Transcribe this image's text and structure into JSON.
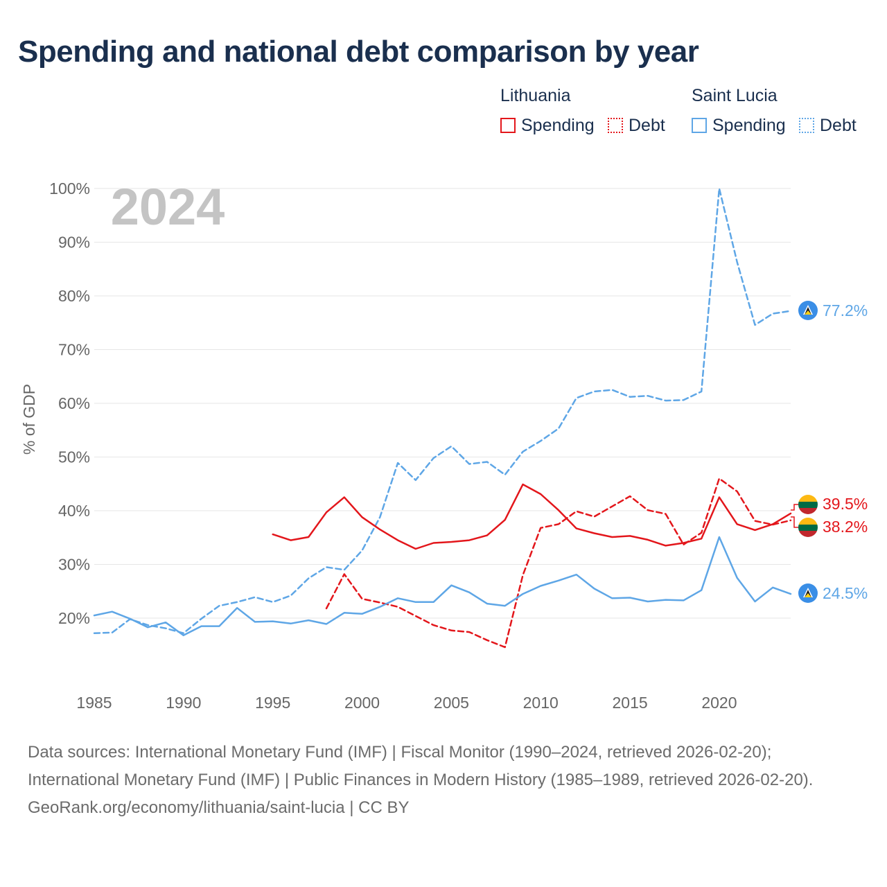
{
  "title": "Spending and national debt comparison by year",
  "legend": {
    "lithuania": {
      "name": "Lithuania",
      "spending": "Spending",
      "debt": "Debt"
    },
    "saint_lucia": {
      "name": "Saint Lucia",
      "spending": "Spending",
      "debt": "Debt"
    }
  },
  "colors": {
    "lithuania": "#e3161b",
    "saint_lucia": "#5ea6e6",
    "year_watermark": "#c4c4c4",
    "grid": "#e6e6e6"
  },
  "chart_data": {
    "type": "line",
    "year_label": "2024",
    "ylabel": "% of GDP",
    "xlim": [
      1985,
      2024
    ],
    "ylim": [
      8,
      100
    ],
    "x_ticks": [
      1985,
      1990,
      1995,
      2000,
      2005,
      2010,
      2015,
      2020
    ],
    "x_tick_labels": [
      "1985",
      "1990",
      "1995",
      "2000",
      "2005",
      "2010",
      "2015",
      "2020"
    ],
    "y_ticks": [
      20,
      30,
      40,
      50,
      60,
      70,
      80,
      90,
      100
    ],
    "y_tick_labels": [
      "20%",
      "30%",
      "40%",
      "50%",
      "60%",
      "70%",
      "80%",
      "90%",
      "100%"
    ],
    "series": [
      {
        "name": "Lithuania Spending",
        "country": "Lithuania",
        "color": "#e3161b",
        "dash": false,
        "end_label": "39.5%",
        "x": [
          1995,
          1996,
          1997,
          1998,
          1999,
          2000,
          2001,
          2002,
          2003,
          2004,
          2005,
          2006,
          2007,
          2008,
          2009,
          2010,
          2011,
          2012,
          2013,
          2014,
          2015,
          2016,
          2017,
          2018,
          2019,
          2020,
          2021,
          2022,
          2023,
          2024
        ],
        "y": [
          35.6,
          34.5,
          35.1,
          39.7,
          42.5,
          38.8,
          36.5,
          34.5,
          32.9,
          34.0,
          34.2,
          34.5,
          35.4,
          38.3,
          44.9,
          43.1,
          40.1,
          36.7,
          35.8,
          35.1,
          35.3,
          34.6,
          33.5,
          34.0,
          34.8,
          42.5,
          37.5,
          36.4,
          37.5,
          39.5
        ]
      },
      {
        "name": "Lithuania Debt",
        "country": "Lithuania",
        "color": "#e3161b",
        "dash": true,
        "end_label": "38.2%",
        "x": [
          1998,
          1999,
          2000,
          2001,
          2002,
          2003,
          2004,
          2005,
          2006,
          2007,
          2008,
          2009,
          2010,
          2011,
          2012,
          2013,
          2014,
          2015,
          2016,
          2017,
          2018,
          2019,
          2020,
          2021,
          2022,
          2023,
          2024
        ],
        "y": [
          21.8,
          28.2,
          23.6,
          22.9,
          22.1,
          20.4,
          18.7,
          17.7,
          17.4,
          15.9,
          14.6,
          28.0,
          36.8,
          37.5,
          39.9,
          38.9,
          40.8,
          42.7,
          40.1,
          39.4,
          33.7,
          35.9,
          46.0,
          43.6,
          38.1,
          37.4,
          38.2
        ]
      },
      {
        "name": "Saint Lucia Spending",
        "country": "Saint Lucia",
        "color": "#5ea6e6",
        "dash": false,
        "end_label": "24.5%",
        "x": [
          1985,
          1986,
          1987,
          1988,
          1989,
          1990,
          1991,
          1992,
          1993,
          1994,
          1995,
          1996,
          1997,
          1998,
          1999,
          2000,
          2001,
          2002,
          2003,
          2004,
          2005,
          2006,
          2007,
          2008,
          2009,
          2010,
          2011,
          2012,
          2013,
          2014,
          2015,
          2016,
          2017,
          2018,
          2019,
          2020,
          2021,
          2022,
          2023,
          2024
        ],
        "y": [
          20.5,
          21.2,
          19.9,
          18.3,
          19.2,
          16.8,
          18.5,
          18.5,
          21.9,
          19.3,
          19.4,
          19.0,
          19.6,
          18.9,
          21.0,
          20.8,
          22.1,
          23.7,
          23.0,
          23.0,
          26.1,
          24.8,
          22.7,
          22.3,
          24.5,
          26.0,
          27.0,
          28.1,
          25.5,
          23.7,
          23.8,
          23.1,
          23.4,
          23.3,
          25.2,
          35.1,
          27.5,
          23.1,
          25.7,
          24.5
        ]
      },
      {
        "name": "Saint Lucia Debt",
        "country": "Saint Lucia",
        "color": "#5ea6e6",
        "dash": true,
        "end_label": "77.2%",
        "x": [
          1985,
          1986,
          1987,
          1988,
          1989,
          1990,
          1991,
          1992,
          1993,
          1994,
          1995,
          1996,
          1997,
          1998,
          1999,
          2000,
          2001,
          2002,
          2003,
          2004,
          2005,
          2006,
          2007,
          2008,
          2009,
          2010,
          2011,
          2012,
          2013,
          2014,
          2015,
          2016,
          2017,
          2018,
          2019,
          2020,
          2021,
          2022,
          2023,
          2024
        ],
        "y": [
          17.2,
          17.3,
          19.8,
          18.7,
          18.1,
          17.2,
          19.9,
          22.3,
          23.0,
          23.9,
          23.0,
          24.2,
          27.4,
          29.5,
          29.0,
          32.6,
          38.8,
          48.9,
          45.7,
          49.8,
          52.0,
          48.7,
          49.1,
          46.7,
          51.0,
          53.0,
          55.3,
          61.0,
          62.2,
          62.5,
          61.2,
          61.4,
          60.5,
          60.6,
          62.2,
          100.0,
          86.3,
          74.6,
          76.7,
          77.2
        ]
      }
    ]
  },
  "footer": {
    "sources": "Data sources: International Monetary Fund (IMF) | Fiscal Monitor (1990–2024, retrieved 2026-02-20); International Monetary Fund (IMF) | Public Finances in Modern History (1985–1989, retrieved 2026-02-20).",
    "credit": "GeoRank.org/economy/lithuania/saint-lucia | CC BY"
  }
}
